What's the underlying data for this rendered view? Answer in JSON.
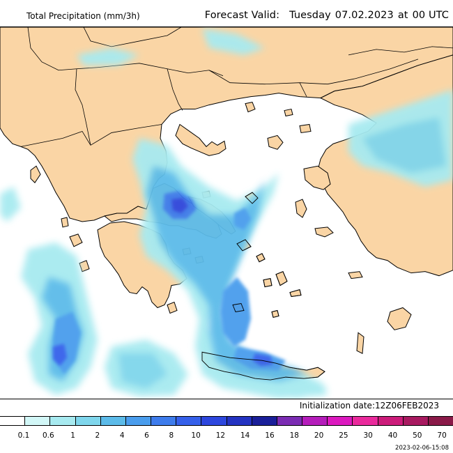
{
  "header": {
    "variable_title": "Total Precipitation (mm/3h)",
    "forecast_label": "Forecast Valid:",
    "forecast_day": "Tuesday",
    "forecast_date": "07.02.2023",
    "forecast_at": "at",
    "forecast_time": "00 UTC"
  },
  "initialization": "Initialization date:12Z06FEB2023",
  "timestamp": "2023-02-06-15:08",
  "colors": {
    "land": "#fad5a5",
    "sea": "#ffffff",
    "coast": "#000000"
  },
  "legend": {
    "tick_labels": [
      "0.1",
      "0.6",
      "1",
      "2",
      "4",
      "6",
      "8",
      "10",
      "12",
      "14",
      "16",
      "18",
      "20",
      "25",
      "30",
      "40",
      "50",
      "70"
    ],
    "colors": [
      "#ffffff",
      "#d2f7f7",
      "#a7eaf0",
      "#7fd6ec",
      "#5cbbe9",
      "#4a9ded",
      "#3e7cec",
      "#3560ea",
      "#2d47de",
      "#2433c2",
      "#1a1f99",
      "#7b2cb3",
      "#b51dbb",
      "#dc19bf",
      "#ea2a9c",
      "#cc1c7a",
      "#a81a60",
      "#8a1a48"
    ]
  }
}
